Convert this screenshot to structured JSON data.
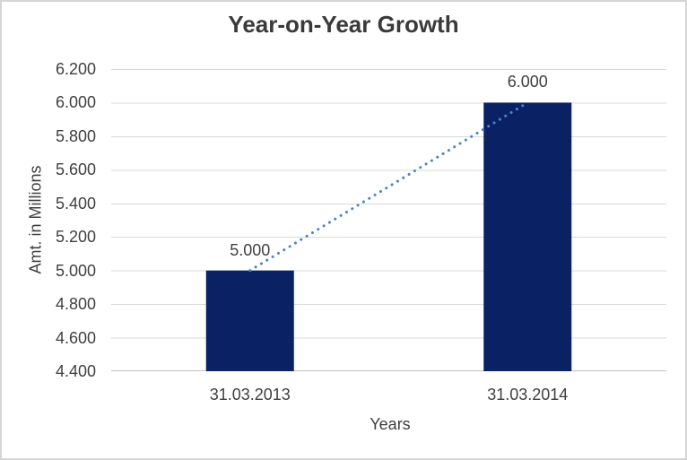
{
  "window": {
    "background": "#FFFFFF",
    "border_color": "#D6D6D6"
  },
  "chart_data": {
    "type": "bar",
    "title": "Year-on-Year Growth",
    "xlabel": "Years",
    "ylabel": "Amt. in Millions",
    "categories": [
      "31.03.2013",
      "31.03.2014"
    ],
    "values": [
      5000,
      6000
    ],
    "value_labels": [
      "5.000",
      "6.000"
    ],
    "series": [
      {
        "name": "Amt. in Millions",
        "values": [
          5000,
          6000
        ]
      }
    ],
    "ylim": [
      4400,
      6200
    ],
    "ytick_step": 200,
    "ytick_labels": [
      "4.400",
      "4.600",
      "4.800",
      "5.000",
      "5.200",
      "5.400",
      "5.600",
      "5.800",
      "6.000",
      "6.200"
    ],
    "grid": true,
    "legend_position": "none",
    "number_format_note": "dot used as thousands separator",
    "trendline": {
      "type": "linear",
      "style": "dotted",
      "color": "#4A85C6"
    },
    "colors": {
      "bar": "#0A2264",
      "gridline": "#D9D9D9",
      "axis_line": "#C0C0C0",
      "text": "#3F3F3F",
      "title": "#3A3A3A"
    }
  }
}
